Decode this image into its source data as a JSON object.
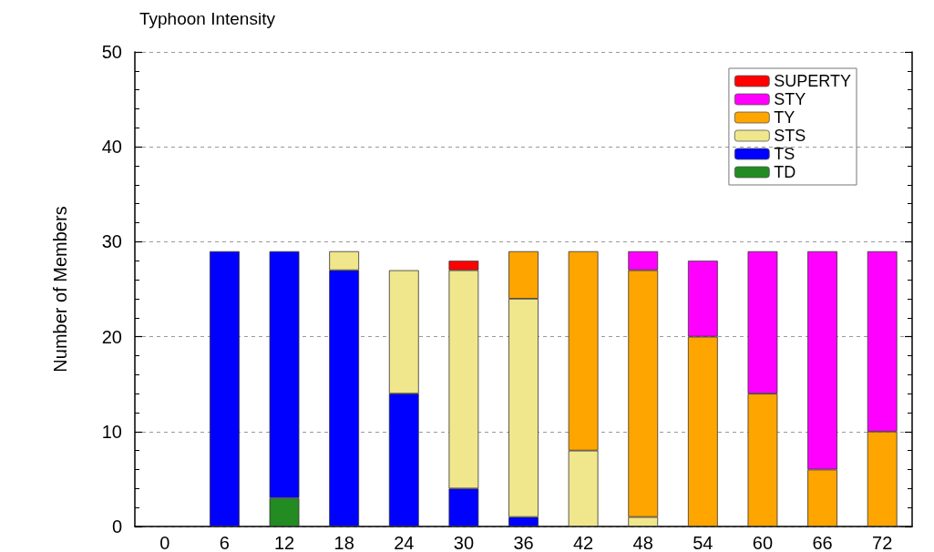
{
  "chart_data": {
    "type": "bar",
    "title": "Typhoon Intensity",
    "ylabel": "Number of Members",
    "categories": [
      "0",
      "6",
      "12",
      "18",
      "24",
      "30",
      "36",
      "42",
      "48",
      "54",
      "60",
      "66",
      "72"
    ],
    "stacked": true,
    "series": [
      {
        "name": "TD",
        "color": "#228b22",
        "values": [
          null,
          null,
          3,
          null,
          null,
          null,
          null,
          null,
          null,
          null,
          null,
          null,
          null
        ]
      },
      {
        "name": "TS",
        "color": "#0000ff",
        "values": [
          null,
          29,
          26,
          27,
          14,
          4,
          1,
          null,
          null,
          null,
          null,
          null,
          null
        ]
      },
      {
        "name": "STS",
        "color": "#f0e68c",
        "values": [
          null,
          null,
          null,
          2,
          13,
          23,
          23,
          8,
          1,
          null,
          null,
          null,
          null
        ]
      },
      {
        "name": "TY",
        "color": "#ffa500",
        "values": [
          null,
          null,
          null,
          null,
          null,
          null,
          5,
          21,
          26,
          20,
          14,
          6,
          10
        ]
      },
      {
        "name": "STY",
        "color": "#ff00ff",
        "values": [
          null,
          null,
          null,
          null,
          null,
          null,
          null,
          null,
          2,
          8,
          15,
          23,
          19
        ]
      },
      {
        "name": "SUPERTY",
        "color": "#ff0000",
        "values": [
          null,
          null,
          null,
          null,
          null,
          1,
          null,
          null,
          null,
          null,
          null,
          null,
          null
        ]
      }
    ],
    "ylim": [
      0,
      50
    ],
    "yticks": [
      0,
      10,
      20,
      30,
      40,
      50
    ],
    "grid": "y",
    "legend": "top right"
  }
}
